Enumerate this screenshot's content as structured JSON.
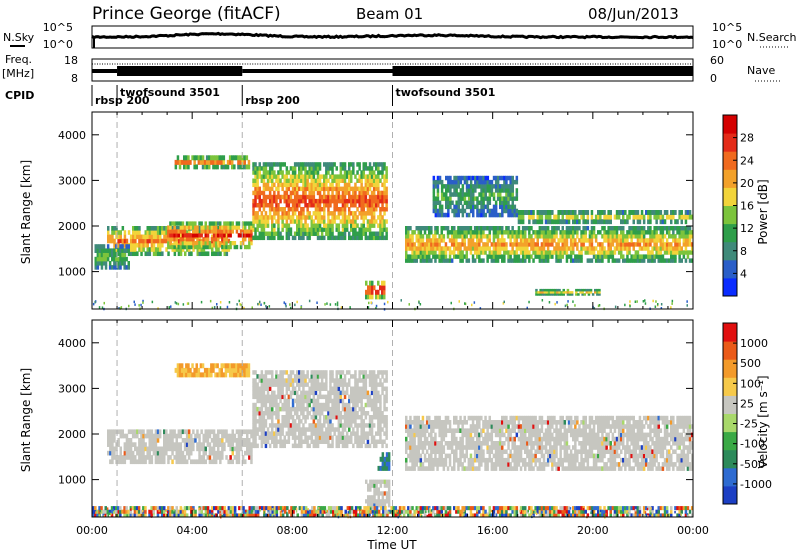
{
  "header": {
    "station": "Prince George (fitACF)",
    "beam": "Beam 01",
    "date": "08/Jun/2013"
  },
  "strip": {
    "nsky_label": "N.Sky",
    "nsearch_label": "N.Search",
    "freq_label_1": "Freq.",
    "freq_label_2": "[MHz]",
    "nave_label": "Nave",
    "cpid_label": "CPID",
    "noise_left_ticks": [
      "10^5",
      "10^0"
    ],
    "noise_right_ticks": [
      "10^5",
      "10^0"
    ],
    "freq_left_ticks": [
      "18",
      "8"
    ],
    "freq_right_ticks": [
      "60",
      "0"
    ],
    "cpid_segments": [
      {
        "name": "rbsp 200",
        "start_hour": 0.0
      },
      {
        "name": "twofsound 3501",
        "start_hour": 1.0
      },
      {
        "name": "rbsp 200",
        "start_hour": 6.0
      },
      {
        "name": "twofsound 3501",
        "start_hour": 12.0
      }
    ]
  },
  "chart_data": [
    {
      "type": "heatmap",
      "panel": "power",
      "ylabel": "Slant Range [km]",
      "ylim": [
        180,
        4500
      ],
      "yticks": [
        "1000",
        "2000",
        "3000",
        "4000"
      ],
      "xlim_hours": [
        0,
        24
      ],
      "colorbar": {
        "label": "Power [dB]",
        "range": [
          0,
          32
        ],
        "ticks": [
          "4",
          "8",
          "12",
          "16",
          "20",
          "24",
          "28"
        ],
        "colors": [
          "#0a2cff",
          "#2a5ec8",
          "#3f8a7a",
          "#2e9e4a",
          "#7cc43c",
          "#f2d43a",
          "#f3a12a",
          "#f06a1e",
          "#e42b18",
          "#d40000"
        ]
      },
      "echo_bands": [
        {
          "t0": 0.6,
          "t1": 5.5,
          "r0": 1350,
          "r1": 2000,
          "peak_db": 24
        },
        {
          "t0": 3.0,
          "t1": 6.4,
          "r0": 1500,
          "r1": 2100,
          "peak_db": 28
        },
        {
          "t0": 6.4,
          "t1": 11.8,
          "r0": 1700,
          "r1": 3400,
          "peak_db": 26
        },
        {
          "t0": 3.3,
          "t1": 6.3,
          "r0": 3250,
          "r1": 3550,
          "peak_db": 22
        },
        {
          "t0": 0.1,
          "t1": 1.5,
          "r0": 1050,
          "r1": 1600,
          "peak_db": 14
        },
        {
          "t0": 10.9,
          "t1": 11.7,
          "r0": 400,
          "r1": 800,
          "peak_db": 30
        },
        {
          "t0": 12.5,
          "t1": 24.0,
          "r0": 1200,
          "r1": 2000,
          "peak_db": 22
        },
        {
          "t0": 17.0,
          "t1": 24.0,
          "r0": 2050,
          "r1": 2350,
          "peak_db": 16
        },
        {
          "t0": 13.6,
          "t1": 17.0,
          "r0": 2200,
          "r1": 3100,
          "peak_db": 12
        },
        {
          "t0": 17.7,
          "t1": 20.3,
          "r0": 480,
          "r1": 620,
          "peak_db": 18
        }
      ]
    },
    {
      "type": "heatmap",
      "panel": "velocity",
      "ylabel": "Slant Range [km]",
      "ylim": [
        180,
        4500
      ],
      "yticks": [
        "1000",
        "2000",
        "3000",
        "4000"
      ],
      "xlim_hours": [
        0,
        24
      ],
      "xticks": [
        "00:00",
        "04:00",
        "08:00",
        "12:00",
        "16:00",
        "20:00",
        "00:00"
      ],
      "xlabel": "Time UT",
      "colorbar": {
        "label": "Velocity [m s⁻¹]",
        "ticks": [
          "1000",
          "500",
          "100",
          "25",
          "-25",
          "-100",
          "-500",
          "-1000"
        ],
        "colors": [
          "#1c3fc4",
          "#2e6bd1",
          "#2c8a5a",
          "#3aa945",
          "#a8d86a",
          "#c6c6c0",
          "#f6c94a",
          "#f39a2a",
          "#ea5a18",
          "#e10f0f"
        ]
      },
      "echo_bands": [
        {
          "t0": 0.6,
          "t1": 6.4,
          "r0": 1350,
          "r1": 2100,
          "class": "ground"
        },
        {
          "t0": 6.4,
          "t1": 11.8,
          "r0": 1700,
          "r1": 3400,
          "class": "ground"
        },
        {
          "t0": 3.3,
          "t1": 6.3,
          "r0": 3250,
          "r1": 3550,
          "class": "positive"
        },
        {
          "t0": 10.9,
          "t1": 11.9,
          "r0": 400,
          "r1": 1000,
          "class": "ground"
        },
        {
          "t0": 12.5,
          "t1": 24.0,
          "r0": 1200,
          "r1": 2400,
          "class": "ground"
        },
        {
          "t0": 11.4,
          "t1": 11.9,
          "r0": 1200,
          "r1": 1600,
          "class": "negative-strong"
        },
        {
          "t0": 0.0,
          "t1": 24.0,
          "r0": 180,
          "r1": 420,
          "class": "mixed"
        }
      ]
    }
  ]
}
